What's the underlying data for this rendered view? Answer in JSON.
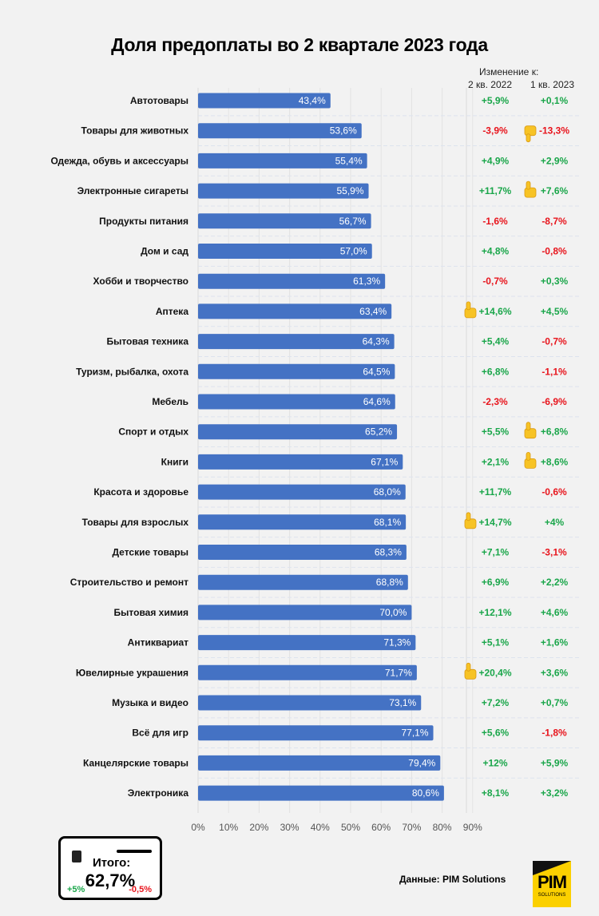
{
  "chart_data": {
    "type": "bar",
    "orientation": "horizontal",
    "title": "Доля предоплаты во 2 квартале 2023 года",
    "xlabel": "",
    "ylabel": "",
    "xlim": [
      0,
      90
    ],
    "x_ticks": [
      "0%",
      "10%",
      "20%",
      "30%",
      "40%",
      "50%",
      "60%",
      "70%",
      "80%",
      "90%"
    ],
    "grid": true,
    "bar_color": "#4472c4",
    "categories": [
      "Автотовары",
      "Товары для животных",
      "Одежда, обувь и аксессуары",
      "Электронные сигареты",
      "Продукты питания",
      "Дом и сад",
      "Хобби и творчество",
      "Аптека",
      "Бытовая техника",
      "Туризм, рыбалка, охота",
      "Мебель",
      "Спорт и отдых",
      "Книги",
      "Красота и здоровье",
      "Товары для взрослых",
      "Детские товары",
      "Строительство и ремонт",
      "Бытовая химия",
      "Антиквариат",
      "Ювелирные украшения",
      "Музыка и видео",
      "Всё для игр",
      "Канцелярские товары",
      "Электроника"
    ],
    "values": [
      43.4,
      53.6,
      55.4,
      55.9,
      56.7,
      57.0,
      61.3,
      63.4,
      64.3,
      64.5,
      64.6,
      65.2,
      67.1,
      68.0,
      68.1,
      68.3,
      68.8,
      70.0,
      71.3,
      71.7,
      73.1,
      77.1,
      79.4,
      80.6
    ],
    "value_labels": [
      "43,4%",
      "53,6%",
      "55,4%",
      "55,9%",
      "56,7%",
      "57,0%",
      "61,3%",
      "63,4%",
      "64,3%",
      "64,5%",
      "64,6%",
      "65,2%",
      "67,1%",
      "68,0%",
      "68,1%",
      "68,3%",
      "68,8%",
      "70,0%",
      "71,3%",
      "71,7%",
      "73,1%",
      "77,1%",
      "79,4%",
      "80,6%"
    ],
    "change_header": "Изменение к:",
    "change_columns": [
      "2 кв. 2022",
      "1 кв. 2023"
    ],
    "change_vs_q2_2022": [
      "+5,9%",
      "-3,9%",
      "+4,9%",
      "+11,7%",
      "-1,6%",
      "+4,8%",
      "-0,7%",
      "+14,6%",
      "+5,4%",
      "+6,8%",
      "-2,3%",
      "+5,5%",
      "+2,1%",
      "+11,7%",
      "+14,7%",
      "+7,1%",
      "+6,9%",
      "+12,1%",
      "+5,1%",
      "+20,4%",
      "+7,2%",
      "+5,6%",
      "+12%",
      "+8,1%"
    ],
    "change_vs_q1_2023": [
      "+0,1%",
      "-13,3%",
      "+2,9%",
      "+7,6%",
      "-8,7%",
      "-0,8%",
      "+0,3%",
      "+4,5%",
      "-0,7%",
      "-1,1%",
      "-6,9%",
      "+6,8%",
      "+8,6%",
      "-0,6%",
      "+4%",
      "-3,1%",
      "+2,2%",
      "+4,6%",
      "+1,6%",
      "+3,6%",
      "+0,7%",
      "-1,8%",
      "+5,9%",
      "+3,2%"
    ],
    "icons_q2_2022": [
      "",
      "",
      "",
      "",
      "",
      "",
      "",
      "thumbs-up",
      "",
      "",
      "",
      "",
      "",
      "",
      "thumbs-up",
      "",
      "",
      "",
      "",
      "thumbs-up",
      "",
      "",
      "",
      ""
    ],
    "icons_q1_2023": [
      "",
      "thumbs-down",
      "",
      "thumbs-up",
      "",
      "",
      "",
      "",
      "",
      "",
      "",
      "thumbs-up",
      "thumbs-up",
      "",
      "",
      "",
      "",
      "",
      "",
      "",
      "",
      "",
      "",
      ""
    ],
    "positive_color": "#1aa64a",
    "negative_color": "#e8141c"
  },
  "summary": {
    "label": "Итого:",
    "value": "62,7%",
    "change_left": "+5%",
    "change_right": "-0,5%"
  },
  "source": "Данные: PIM Solutions",
  "logo": {
    "main": "PIM",
    "sub": "SOLUTIONS"
  }
}
